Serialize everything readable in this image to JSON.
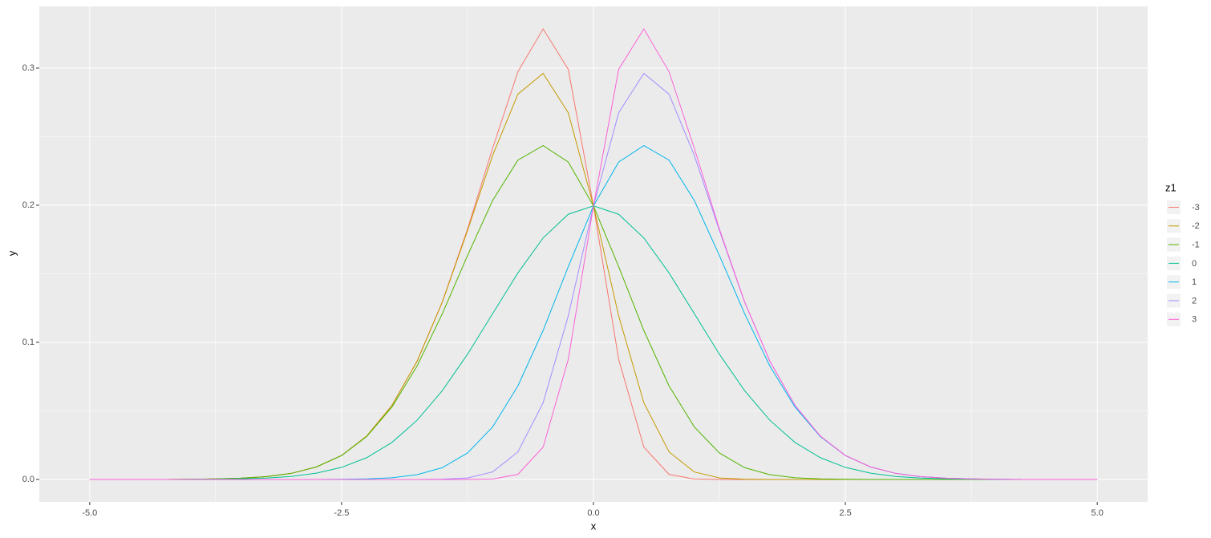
{
  "chart_data": {
    "type": "line",
    "x_label": "x",
    "y_label": "y",
    "legend_title": "z1",
    "legend_position": "right",
    "grid": true,
    "xlim": [
      -5.5,
      5.5
    ],
    "ylim": [
      -0.0164,
      0.345
    ],
    "xticks": [
      {
        "value": -5,
        "label": "-5.0"
      },
      {
        "value": -2.5,
        "label": "-2.5"
      },
      {
        "value": 0,
        "label": "0.0"
      },
      {
        "value": 2.5,
        "label": "2.5"
      },
      {
        "value": 5,
        "label": "5.0"
      }
    ],
    "yticks": [
      {
        "value": 0,
        "label": "0.0"
      },
      0.1,
      0.2,
      0.3
    ],
    "x": [
      -5,
      -4.75,
      -4.5,
      -4.25,
      -4,
      -3.75,
      -3.5,
      -3.25,
      -3,
      -2.75,
      -2.5,
      -2.25,
      -2,
      -1.75,
      -1.5,
      -1.25,
      -1,
      -0.75,
      -0.5,
      -0.25,
      0,
      0.25,
      0.5,
      0.75,
      1,
      1.25,
      1.5,
      1.75,
      2,
      2.25,
      2.5,
      2.75,
      3,
      3.25,
      3.5,
      3.75,
      4,
      4.25,
      4.5,
      4.75,
      5
    ],
    "series": [
      {
        "name": "-3",
        "color": "#F8766D",
        "values": [
          0,
          0,
          0,
          0,
          0.0001,
          0.0004,
          0.0009,
          0.002,
          0.0044,
          0.0091,
          0.0175,
          0.0317,
          0.054,
          0.0863,
          0.1295,
          0.1826,
          0.2417,
          0.2974,
          0.3286,
          0.2991,
          0.1995,
          0.0876,
          0.0235,
          0.0037,
          0.0003,
          0,
          0,
          0,
          0,
          0,
          0,
          0,
          0,
          0,
          0,
          0,
          0,
          0,
          0,
          0,
          0
        ]
      },
      {
        "name": "-2",
        "color": "#C49A00",
        "values": [
          0,
          0,
          0,
          0,
          0.0001,
          0.0004,
          0.0009,
          0.002,
          0.0044,
          0.0091,
          0.0175,
          0.0317,
          0.054,
          0.0863,
          0.1293,
          0.1815,
          0.2365,
          0.281,
          0.2962,
          0.2674,
          0.1995,
          0.1193,
          0.0559,
          0.0201,
          0.0055,
          0.0011,
          0.0002,
          0,
          0,
          0,
          0,
          0,
          0,
          0,
          0,
          0,
          0,
          0,
          0,
          0,
          0
        ]
      },
      {
        "name": "-1",
        "color": "#53B400",
        "values": [
          0,
          0,
          0,
          0,
          0.0001,
          0.0004,
          0.0009,
          0.002,
          0.0044,
          0.0091,
          0.0174,
          0.0313,
          0.0528,
          0.0828,
          0.1209,
          0.1633,
          0.2036,
          0.2329,
          0.2435,
          0.2315,
          0.1995,
          0.1552,
          0.1086,
          0.0682,
          0.0384,
          0.0193,
          0.0086,
          0.0035,
          0.0012,
          0.0004,
          0.0001,
          0,
          0,
          0,
          0,
          0,
          0,
          0,
          0,
          0,
          0
        ]
      },
      {
        "name": "0",
        "color": "#00C094",
        "values": [
          0,
          0,
          0,
          0,
          0.0001,
          0.0002,
          0.0005,
          0.001,
          0.0022,
          0.0046,
          0.0088,
          0.0159,
          0.027,
          0.0432,
          0.0648,
          0.0913,
          0.121,
          0.1506,
          0.1761,
          0.1934,
          0.1995,
          0.1934,
          0.1761,
          0.1506,
          0.121,
          0.0913,
          0.0648,
          0.0432,
          0.027,
          0.0159,
          0.0088,
          0.0046,
          0.0022,
          0.001,
          0.0005,
          0.0002,
          0.0001,
          0,
          0,
          0,
          0
        ]
      },
      {
        "name": "1",
        "color": "#00B6EB",
        "values": [
          0,
          0,
          0,
          0,
          0,
          0,
          0,
          0,
          0,
          0,
          0.0001,
          0.0004,
          0.0012,
          0.0035,
          0.0086,
          0.0193,
          0.0384,
          0.0682,
          0.1086,
          0.1552,
          0.1995,
          0.2315,
          0.2435,
          0.2329,
          0.2036,
          0.1633,
          0.1209,
          0.0828,
          0.0528,
          0.0313,
          0.0174,
          0.0091,
          0.0044,
          0.002,
          0.0009,
          0.0004,
          0.0001,
          0,
          0,
          0,
          0
        ]
      },
      {
        "name": "2",
        "color": "#A58AFF",
        "values": [
          0,
          0,
          0,
          0,
          0,
          0,
          0,
          0,
          0,
          0,
          0,
          0,
          0,
          0,
          0.0002,
          0.0011,
          0.0055,
          0.0201,
          0.0559,
          0.1193,
          0.1995,
          0.2674,
          0.2962,
          0.281,
          0.2365,
          0.1815,
          0.1293,
          0.0863,
          0.054,
          0.0317,
          0.0175,
          0.0091,
          0.0044,
          0.002,
          0.0009,
          0.0004,
          0.0001,
          0,
          0,
          0,
          0
        ]
      },
      {
        "name": "3",
        "color": "#FB61D7",
        "values": [
          0,
          0,
          0,
          0,
          0,
          0,
          0,
          0,
          0,
          0,
          0,
          0,
          0,
          0,
          0,
          0,
          0.0003,
          0.0037,
          0.0235,
          0.0876,
          0.1995,
          0.2991,
          0.3286,
          0.2974,
          0.2417,
          0.1826,
          0.1295,
          0.0863,
          0.054,
          0.0317,
          0.0175,
          0.0091,
          0.0044,
          0.002,
          0.0009,
          0.0004,
          0.0001,
          0,
          0,
          0,
          0
        ]
      }
    ]
  }
}
